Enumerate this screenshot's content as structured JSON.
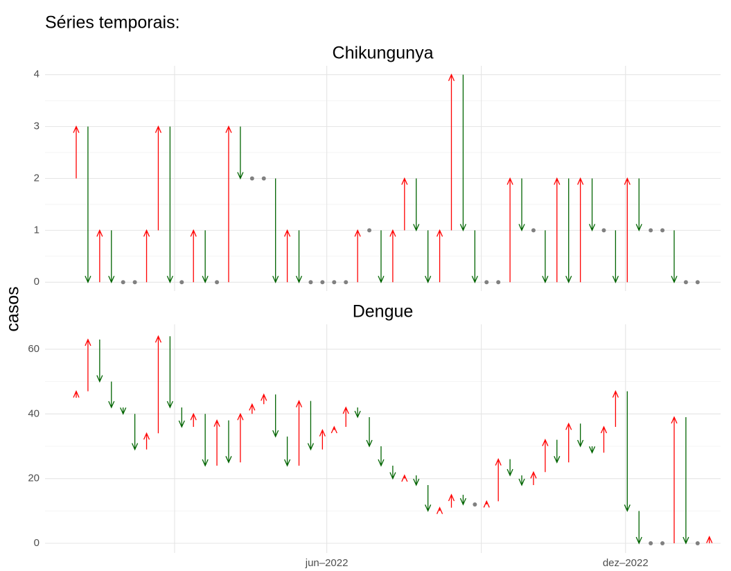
{
  "title": "Séries temporais:",
  "y_label": "casos",
  "x_axis": {
    "xlim": [
      -2.66,
      54.96
    ],
    "xticks": [
      {
        "value": 21.37,
        "label": "jun–2022"
      },
      {
        "value": 46.85,
        "label": "dez–2022"
      }
    ],
    "xminor": [
      8.39,
      34.55
    ]
  },
  "chart_data": [
    {
      "type": "arrow",
      "title": "Chikungunya",
      "up_color": "#ff0000",
      "down_color": "#006400",
      "same_color": "#808080",
      "values": [
        2,
        3,
        0,
        1,
        0,
        0,
        0,
        1,
        3,
        0,
        0,
        1,
        0,
        0,
        3,
        2,
        2,
        2,
        0,
        1,
        0,
        0,
        0,
        0,
        0,
        1,
        1,
        0,
        1,
        2,
        1,
        0,
        1,
        4,
        1,
        0,
        0,
        0,
        2,
        1,
        1,
        0,
        2,
        0,
        2,
        1,
        1,
        0,
        2,
        1,
        1,
        1,
        0,
        0,
        0
      ],
      "ylim": [
        -0.17,
        4.17
      ],
      "yticks": [
        0,
        1,
        2,
        3,
        4
      ],
      "yminor": [
        0.5,
        1.5,
        2.5,
        3.5
      ]
    },
    {
      "type": "arrow",
      "title": "Dengue",
      "up_color": "#ff0000",
      "down_color": "#006400",
      "same_color": "#808080",
      "values": [
        45,
        47,
        63,
        50,
        42,
        40,
        29,
        34,
        64,
        42,
        36,
        40,
        24,
        38,
        25,
        40,
        43,
        46,
        33,
        24,
        44,
        29,
        35,
        36,
        42,
        39,
        30,
        24,
        20,
        21,
        18,
        10,
        11,
        15,
        12,
        12,
        13,
        26,
        21,
        18,
        22,
        32,
        25,
        37,
        30,
        28,
        36,
        47,
        10,
        0,
        0,
        0,
        39,
        0,
        0,
        2
      ],
      "ylim": [
        -3.0,
        67.7
      ],
      "yticks": [
        0,
        20,
        40,
        60
      ],
      "yminor": [
        10,
        30,
        50
      ]
    }
  ]
}
